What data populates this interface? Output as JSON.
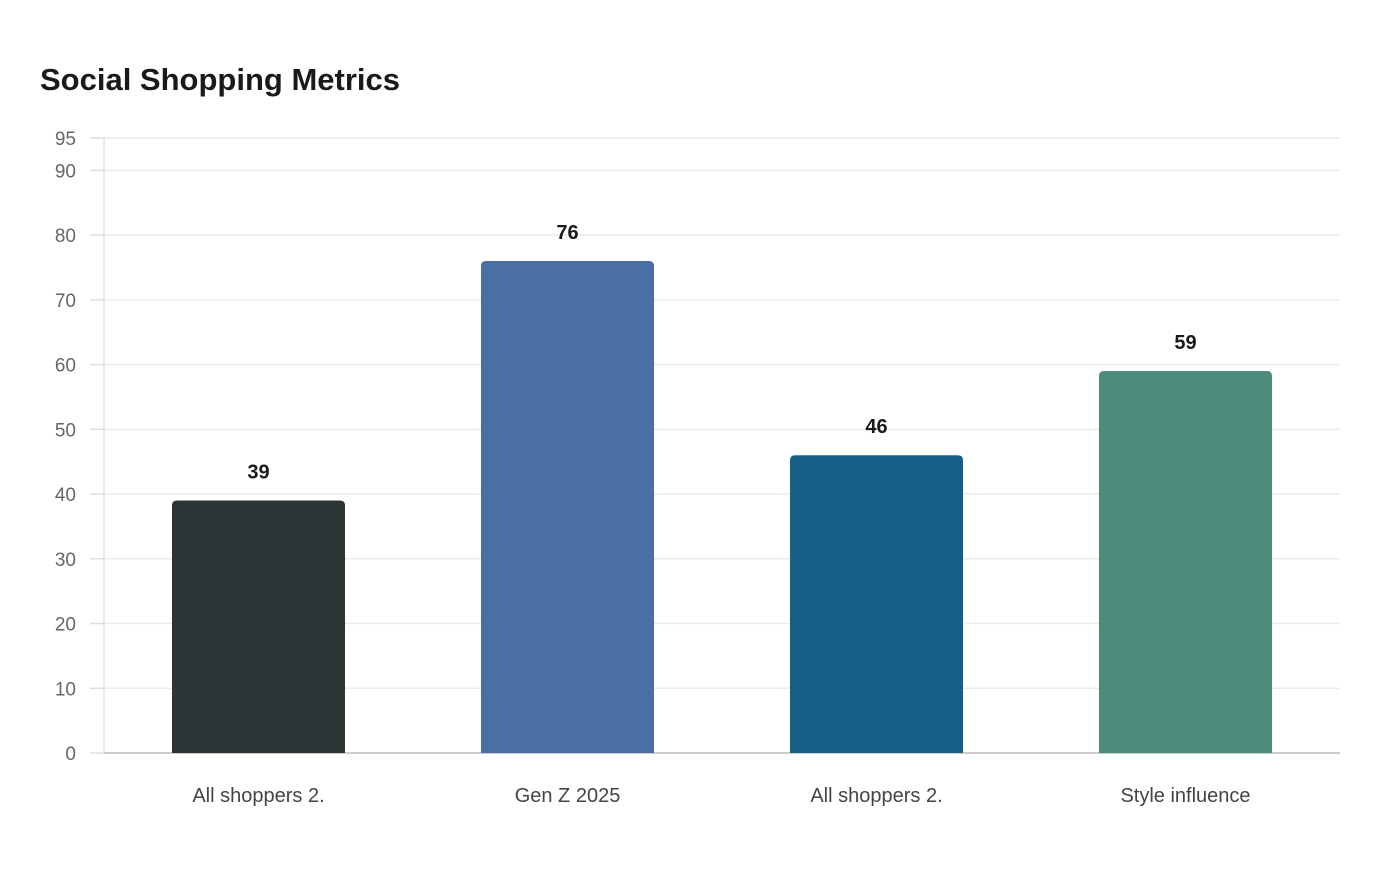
{
  "chart_data": {
    "type": "bar",
    "title": "Social Shopping Metrics",
    "categories": [
      "All shoppers 2.",
      "Gen Z 2025",
      "All shoppers 2.",
      "Style influence"
    ],
    "values": [
      39,
      76,
      46,
      59
    ],
    "colors": [
      "#2d3436",
      "#4a6fa5",
      "#166088",
      "#4d8c7a"
    ],
    "ylim": [
      0,
      95
    ],
    "yticks": [
      0,
      10,
      20,
      30,
      40,
      50,
      60,
      70,
      80,
      90,
      95
    ],
    "grid": true,
    "legend": "none",
    "xlabel": "",
    "ylabel": ""
  }
}
